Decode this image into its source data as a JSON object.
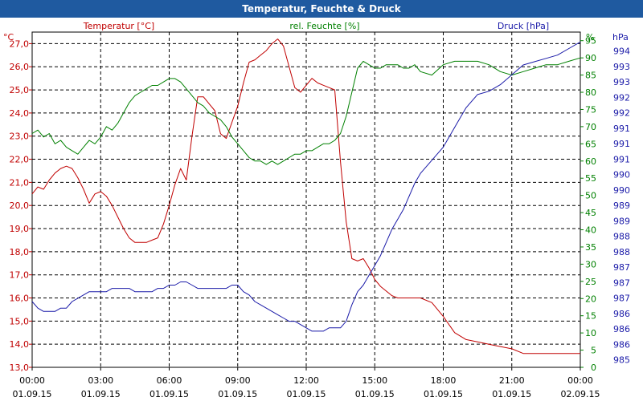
{
  "window": {
    "title": "Temperatur, Feuchte & Druck"
  },
  "chart_data": {
    "type": "line",
    "title": "Temperatur, Feuchte & Druck",
    "x_ticks": [
      {
        "time": "00:00",
        "date": "01.09.15"
      },
      {
        "time": "03:00",
        "date": "01.09.15"
      },
      {
        "time": "06:00",
        "date": "01.09.15"
      },
      {
        "time": "09:00",
        "date": "01.09.15"
      },
      {
        "time": "12:00",
        "date": "01.09.15"
      },
      {
        "time": "15:00",
        "date": "01.09.15"
      },
      {
        "time": "18:00",
        "date": "01.09.15"
      },
      {
        "time": "21:00",
        "date": "01.09.15"
      },
      {
        "time": "00:00",
        "date": "02.09.15"
      }
    ],
    "x_range_hours": [
      0,
      24
    ],
    "axes": {
      "temperature": {
        "label": "Temperatur [°C]",
        "unit": "°C",
        "color": "#c00000",
        "side": "left",
        "range": [
          13.0,
          27.5
        ],
        "tick_values": [
          13,
          14,
          15,
          16,
          17,
          18,
          19,
          20,
          21,
          22,
          23,
          24,
          25,
          26,
          27
        ],
        "tick_labels": [
          "13,0",
          "14,0",
          "15,0",
          "16,0",
          "17,0",
          "18,0",
          "19,0",
          "20,0",
          "21,0",
          "22,0",
          "23,0",
          "24,0",
          "25,0",
          "26,0",
          "27,0"
        ]
      },
      "humidity": {
        "label": "rel. Feuchte [%]",
        "unit": "%",
        "color": "#008000",
        "side": "right-inner",
        "range": [
          0,
          97.5
        ],
        "tick_values": [
          0,
          5,
          10,
          15,
          20,
          25,
          30,
          35,
          40,
          45,
          50,
          55,
          60,
          65,
          70,
          75,
          80,
          85,
          90,
          95
        ],
        "tick_labels": [
          "0",
          "5",
          "10",
          "15",
          "20",
          "25",
          "30",
          "35",
          "40",
          "45",
          "50",
          "55",
          "60",
          "65",
          "70",
          "75",
          "80",
          "85",
          "90",
          "95"
        ]
      },
      "pressure": {
        "label": "Druck [hPa]",
        "unit": "hPa",
        "color": "#1a1aa8",
        "side": "right-outer",
        "tick_labels": [
          "985",
          "986",
          "986",
          "986",
          "987",
          "987",
          "987",
          "988",
          "988",
          "989",
          "989",
          "990",
          "990",
          "991",
          "991",
          "991",
          "992",
          "992",
          "993",
          "993",
          "994"
        ]
      }
    },
    "series": [
      {
        "name": "Temperatur",
        "axis": "temperature",
        "color": "#c00000",
        "x": [
          0,
          0.25,
          0.5,
          0.75,
          1,
          1.25,
          1.5,
          1.75,
          2,
          2.25,
          2.5,
          2.75,
          3,
          3.25,
          3.5,
          3.75,
          4,
          4.25,
          4.5,
          4.75,
          5,
          5.25,
          5.5,
          5.75,
          6,
          6.25,
          6.5,
          6.75,
          7,
          7.25,
          7.5,
          7.75,
          8,
          8.25,
          8.5,
          8.75,
          9,
          9.25,
          9.5,
          9.75,
          10,
          10.25,
          10.5,
          10.75,
          11,
          11.25,
          11.5,
          11.75,
          12,
          12.25,
          12.5,
          12.75,
          13,
          13.25,
          13.5,
          13.75,
          14,
          14.25,
          14.5,
          14.75,
          15,
          15.25,
          15.5,
          15.75,
          16,
          16.25,
          16.5,
          16.75,
          17,
          17.5,
          18,
          18.5,
          19,
          19.5,
          20,
          20.5,
          21,
          21.5,
          22,
          22.5,
          23,
          23.5,
          24
        ],
        "values": [
          20.5,
          20.8,
          20.7,
          21.1,
          21.4,
          21.6,
          21.7,
          21.6,
          21.2,
          20.7,
          20.1,
          20.5,
          20.6,
          20.4,
          20.0,
          19.5,
          19.0,
          18.6,
          18.4,
          18.4,
          18.4,
          18.5,
          18.6,
          19.2,
          20.0,
          20.9,
          21.6,
          21.1,
          23.0,
          24.7,
          24.7,
          24.4,
          24.1,
          23.1,
          22.9,
          23.6,
          24.3,
          25.3,
          26.2,
          26.3,
          26.5,
          26.7,
          27.0,
          27.2,
          26.9,
          26.0,
          25.1,
          24.9,
          25.2,
          25.5,
          25.3,
          25.2,
          25.1,
          25.0,
          21.9,
          19.3,
          17.7,
          17.6,
          17.7,
          17.3,
          16.8,
          16.5,
          16.3,
          16.1,
          16.0,
          16.0,
          16.0,
          16.0,
          16.0,
          15.8,
          15.2,
          14.5,
          14.2,
          14.1,
          14.0,
          13.9,
          13.8,
          13.6,
          13.6,
          13.6,
          13.6,
          13.6,
          13.6
        ],
        "note_x_units": "hours since 01.09.15 00:00"
      },
      {
        "name": "rel. Feuchte",
        "axis": "humidity",
        "color": "#008000",
        "x": [
          0,
          0.25,
          0.5,
          0.75,
          1,
          1.25,
          1.5,
          1.75,
          2,
          2.25,
          2.5,
          2.75,
          3,
          3.25,
          3.5,
          3.75,
          4,
          4.25,
          4.5,
          4.75,
          5,
          5.25,
          5.5,
          5.75,
          6,
          6.25,
          6.5,
          6.75,
          7,
          7.25,
          7.5,
          7.75,
          8,
          8.25,
          8.5,
          8.75,
          9,
          9.25,
          9.5,
          9.75,
          10,
          10.25,
          10.5,
          10.75,
          11,
          11.25,
          11.5,
          11.75,
          12,
          12.25,
          12.5,
          12.75,
          13,
          13.25,
          13.5,
          13.75,
          14,
          14.25,
          14.5,
          14.75,
          15,
          15.25,
          15.5,
          15.75,
          16,
          16.25,
          16.5,
          16.75,
          17,
          17.5,
          18,
          18.5,
          19,
          19.5,
          20,
          20.5,
          21,
          21.5,
          22,
          22.5,
          23,
          23.5,
          24
        ],
        "values": [
          68,
          69,
          67,
          68,
          65,
          66,
          64,
          63,
          62,
          64,
          66,
          65,
          67,
          70,
          69,
          71,
          74,
          77,
          79,
          80,
          81,
          82,
          82,
          83,
          84,
          84,
          83,
          81,
          79,
          77,
          76,
          74,
          73,
          72,
          70,
          67,
          65,
          63,
          61,
          60,
          60,
          59,
          60,
          59,
          60,
          61,
          62,
          62,
          63,
          63,
          64,
          65,
          65,
          66,
          68,
          73,
          80,
          87,
          89,
          88,
          87,
          87,
          88,
          88,
          88,
          87,
          87,
          88,
          86,
          85,
          88,
          89,
          89,
          89,
          88,
          86,
          85,
          86,
          87,
          88,
          88,
          89,
          90
        ],
        "note_x_units": "hours since 01.09.15 00:00"
      },
      {
        "name": "Druck",
        "axis": "pressure",
        "color": "#1a1aa8",
        "x": [
          0,
          0.25,
          0.5,
          0.75,
          1,
          1.25,
          1.5,
          1.75,
          2,
          2.25,
          2.5,
          2.75,
          3,
          3.25,
          3.5,
          3.75,
          4,
          4.25,
          4.5,
          4.75,
          5,
          5.25,
          5.5,
          5.75,
          6,
          6.25,
          6.5,
          6.75,
          7,
          7.25,
          7.5,
          7.75,
          8,
          8.25,
          8.5,
          8.75,
          9,
          9.25,
          9.5,
          9.75,
          10,
          10.25,
          10.5,
          10.75,
          11,
          11.25,
          11.5,
          11.75,
          12,
          12.25,
          12.5,
          12.75,
          13,
          13.25,
          13.5,
          13.75,
          14,
          14.25,
          14.5,
          14.75,
          15,
          15.25,
          15.5,
          15.75,
          16,
          16.25,
          16.5,
          16.75,
          17,
          17.5,
          18,
          18.5,
          19,
          19.5,
          20,
          20.5,
          21,
          21.5,
          22,
          22.5,
          23,
          23.5,
          24
        ],
        "values": [
          986.6,
          986.4,
          986.3,
          986.3,
          986.3,
          986.4,
          986.4,
          986.6,
          986.7,
          986.8,
          986.9,
          986.9,
          986.9,
          986.9,
          987.0,
          987.0,
          987.0,
          987.0,
          986.9,
          986.9,
          986.9,
          986.9,
          987.0,
          987.0,
          987.1,
          987.1,
          987.2,
          987.2,
          987.1,
          987.0,
          987.0,
          987.0,
          987.0,
          987.0,
          987.0,
          987.1,
          987.1,
          986.9,
          986.8,
          986.6,
          986.5,
          986.4,
          986.3,
          986.2,
          986.1,
          986.0,
          986.0,
          985.9,
          985.8,
          985.7,
          985.7,
          985.7,
          985.8,
          985.8,
          985.8,
          986.0,
          986.5,
          986.9,
          987.1,
          987.4,
          987.7,
          988.0,
          988.4,
          988.8,
          989.1,
          989.4,
          989.8,
          990.2,
          990.5,
          990.9,
          991.3,
          991.9,
          992.5,
          992.9,
          993.0,
          993.2,
          993.5,
          993.8,
          993.9,
          994.0,
          994.1,
          994.3,
          994.5
        ],
        "note_x_units": "hours since 01.09.15 00:00"
      }
    ],
    "grid": true,
    "legend_placement": "top (axis headers)"
  }
}
